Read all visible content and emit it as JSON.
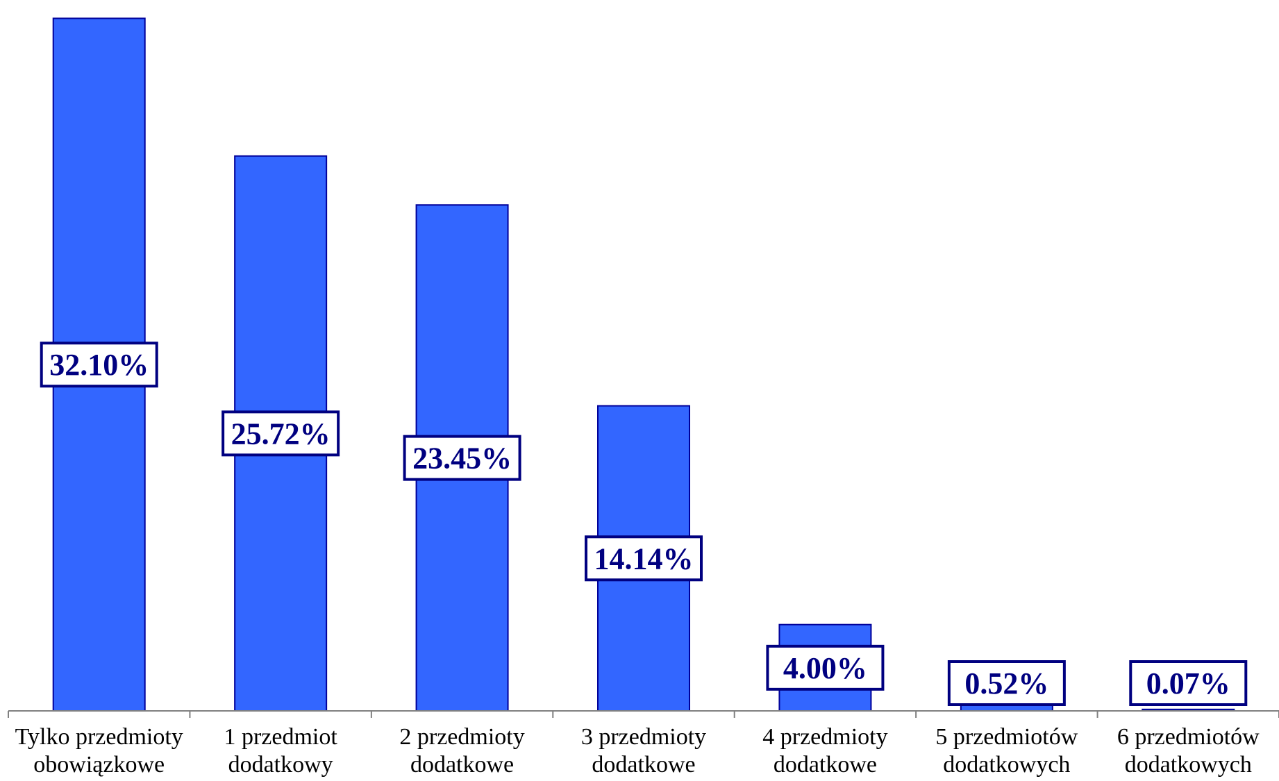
{
  "chart_data": {
    "type": "bar",
    "categories": [
      [
        "Tylko przedmioty",
        "obowiązkowe"
      ],
      [
        "1 przedmiot",
        "dodatkowy"
      ],
      [
        "2 przedmioty",
        "dodatkowe"
      ],
      [
        "3 przedmioty",
        "dodatkowe"
      ],
      [
        "4 przedmioty",
        "dodatkowe"
      ],
      [
        "5 przedmiotów",
        "dodatkowych"
      ],
      [
        "6 przedmiotów",
        "dodatkowych"
      ]
    ],
    "values": [
      32.1,
      25.72,
      23.45,
      14.14,
      4.0,
      0.52,
      0.07
    ],
    "data_labels": [
      "32.10%",
      "25.72%",
      "23.45%",
      "14.14%",
      "4.00%",
      "0.52%",
      "0.07%"
    ],
    "title": "",
    "xlabel": "",
    "ylabel": "",
    "ylim": [
      0,
      32.5
    ],
    "grid": false,
    "legend": "none",
    "colors": {
      "bar": "#3366ff",
      "bar_border": "#000099",
      "label_text": "#000080",
      "label_border": "#000080",
      "axis": "#808080"
    }
  }
}
